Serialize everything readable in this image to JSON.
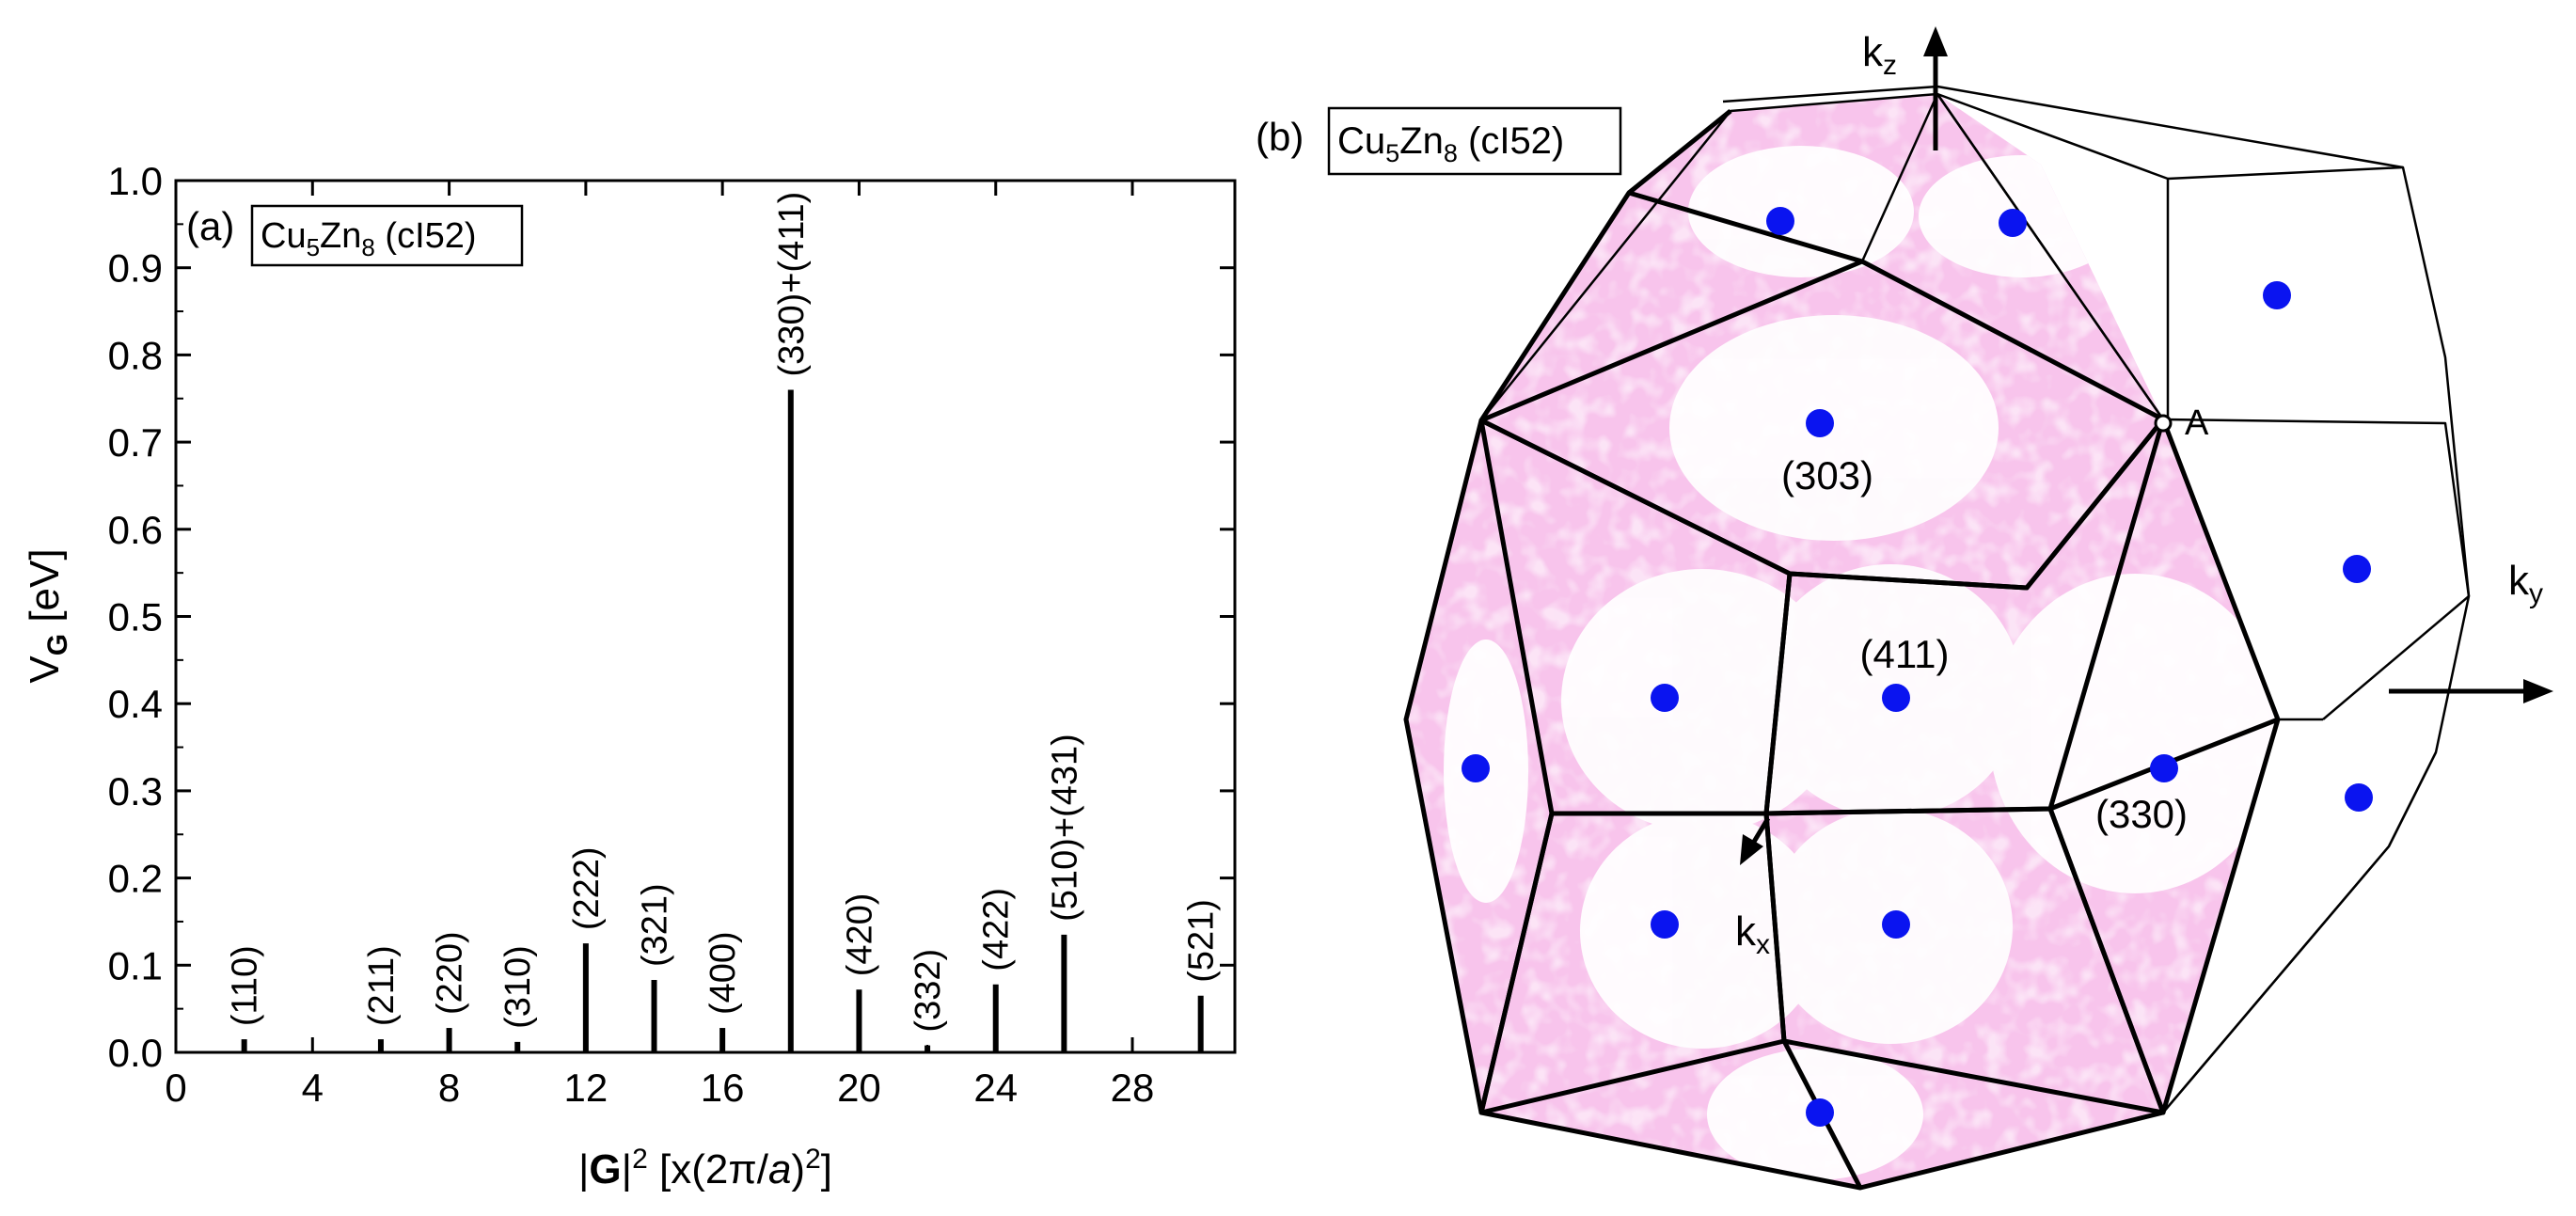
{
  "chart_data": [
    {
      "type": "bar",
      "panel_label": "(a)",
      "title": "Cu5Zn8 (cI52)",
      "title_parts": {
        "base1": "Cu",
        "sub1": "5",
        "base2": "Zn",
        "sub2": "8",
        "rest": " (cI52)"
      },
      "xlabel": "|G|2 [x(2π/a)2]",
      "ylabel": "VG [eV]",
      "xlim": [
        0,
        31
      ],
      "ylim": [
        0,
        1.0
      ],
      "x_ticks": [
        "0",
        "4",
        "8",
        "12",
        "16",
        "20",
        "24",
        "28"
      ],
      "y_ticks": [
        "0.0",
        "0.1",
        "0.2",
        "0.3",
        "0.4",
        "0.5",
        "0.6",
        "0.7",
        "0.8",
        "0.9",
        "1.0"
      ],
      "grid": false,
      "series": [
        {
          "name": "VG",
          "points": [
            {
              "x": 2,
              "value": 0.015,
              "label": "(110)"
            },
            {
              "x": 6,
              "value": 0.015,
              "label": "(211)"
            },
            {
              "x": 8,
              "value": 0.028,
              "label": "(220)"
            },
            {
              "x": 10,
              "value": 0.012,
              "label": "(310)"
            },
            {
              "x": 12,
              "value": 0.125,
              "label": "(222)"
            },
            {
              "x": 14,
              "value": 0.083,
              "label": "(321)"
            },
            {
              "x": 16,
              "value": 0.028,
              "label": "(400)"
            },
            {
              "x": 18,
              "value": 0.76,
              "label": "(330)+(411)"
            },
            {
              "x": 20,
              "value": 0.072,
              "label": "(420)"
            },
            {
              "x": 22,
              "value": 0.008,
              "label": "(332)"
            },
            {
              "x": 24,
              "value": 0.078,
              "label": "(422)"
            },
            {
              "x": 26,
              "value": 0.135,
              "label": "(510)+(431)"
            },
            {
              "x": 30,
              "value": 0.065,
              "label": "(521)"
            }
          ]
        }
      ]
    },
    {
      "type": "diagram",
      "panel_label": "(b)",
      "title": "Cu5Zn8 (cI52)",
      "title_parts": {
        "base1": "Cu",
        "sub1": "5",
        "base2": "Zn",
        "sub2": "8",
        "rest": " (cI52)"
      },
      "axes": {
        "kz": "kz",
        "ky": "ky",
        "kx": "kx"
      },
      "point_label": "A",
      "face_labels": [
        "(303)",
        "(411)",
        "(330)"
      ],
      "colors": {
        "fermi_surface": "#f8c4ec",
        "face_center": "#0a14f0",
        "edge": "#000000"
      }
    }
  ]
}
